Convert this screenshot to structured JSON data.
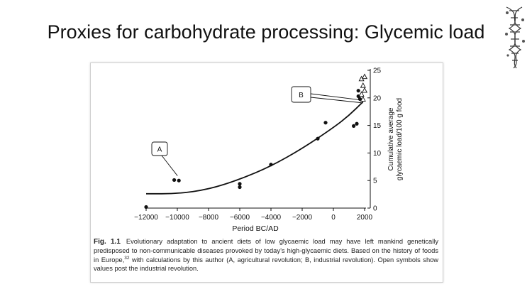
{
  "slide": {
    "title": "Proxies for carbohydrate processing: Glycemic load"
  },
  "chart_data": {
    "type": "scatter",
    "xlabel": "Period  BC/AD",
    "ylabel_lines": [
      "Cumulative average",
      "glycaemic load/100 g food"
    ],
    "xlim": [
      -12000,
      2000
    ],
    "ylim": [
      0,
      25
    ],
    "x_ticks": [
      -12000,
      -10000,
      -8000,
      -6000,
      -4000,
      -2000,
      0,
      2000
    ],
    "x_tick_labels": [
      "−12000",
      "−10000",
      "−8000",
      "−6000",
      "−4000",
      "−2000",
      "0",
      "2000"
    ],
    "y_ticks": [
      0,
      5,
      10,
      15,
      20,
      25
    ],
    "y_tick_labels": [
      "0",
      "5",
      "10",
      "15",
      "20",
      "25"
    ],
    "y_axis_side": "right",
    "grid": false,
    "series": [
      {
        "marker": "filled-circle",
        "points": [
          [
            -12000,
            0.2
          ],
          [
            -10200,
            5.1
          ],
          [
            -9900,
            5.0
          ],
          [
            -6000,
            4.4
          ],
          [
            -6000,
            3.8
          ],
          [
            -4000,
            7.9
          ],
          [
            -1000,
            12.6
          ],
          [
            -500,
            15.5
          ],
          [
            1300,
            14.9
          ],
          [
            1500,
            15.3
          ],
          [
            1600,
            21.3
          ],
          [
            1600,
            20.3
          ],
          [
            1700,
            19.8
          ]
        ]
      },
      {
        "marker": "open-triangle",
        "points": [
          [
            1800,
            23.4
          ],
          [
            2000,
            23.8
          ],
          [
            1900,
            22.2
          ],
          [
            2000,
            21.3
          ],
          [
            1800,
            20.6
          ],
          [
            1900,
            19.7
          ]
        ]
      },
      {
        "marker": "line",
        "points": [
          [
            -12000,
            2.6
          ],
          [
            -10000,
            2.6
          ],
          [
            -8000,
            3.4
          ],
          [
            -6000,
            5.2
          ],
          [
            -4000,
            7.6
          ],
          [
            -2000,
            10.8
          ],
          [
            0,
            14.6
          ],
          [
            1000,
            16.8
          ],
          [
            1900,
            19.3
          ]
        ]
      }
    ],
    "annotations": [
      {
        "label": "A",
        "x": -9900,
        "y": 5.6
      },
      {
        "label": "B",
        "x": 1800,
        "y": 19.6
      }
    ]
  },
  "caption": {
    "label": "Fig. 1.1",
    "text_part1": "Evolutionary adaptation to ancient diets of low glycaemic load may have left mankind genetically predisposed to non-communicable diseases provoked by today’s high-glycaemic diets. Based on the history of foods in Europe,",
    "reference": "32",
    "text_part2": " with calculations by this author (A, agricultural revolution; B, industrial revolution). Open symbols show values post the industrial revolution."
  }
}
